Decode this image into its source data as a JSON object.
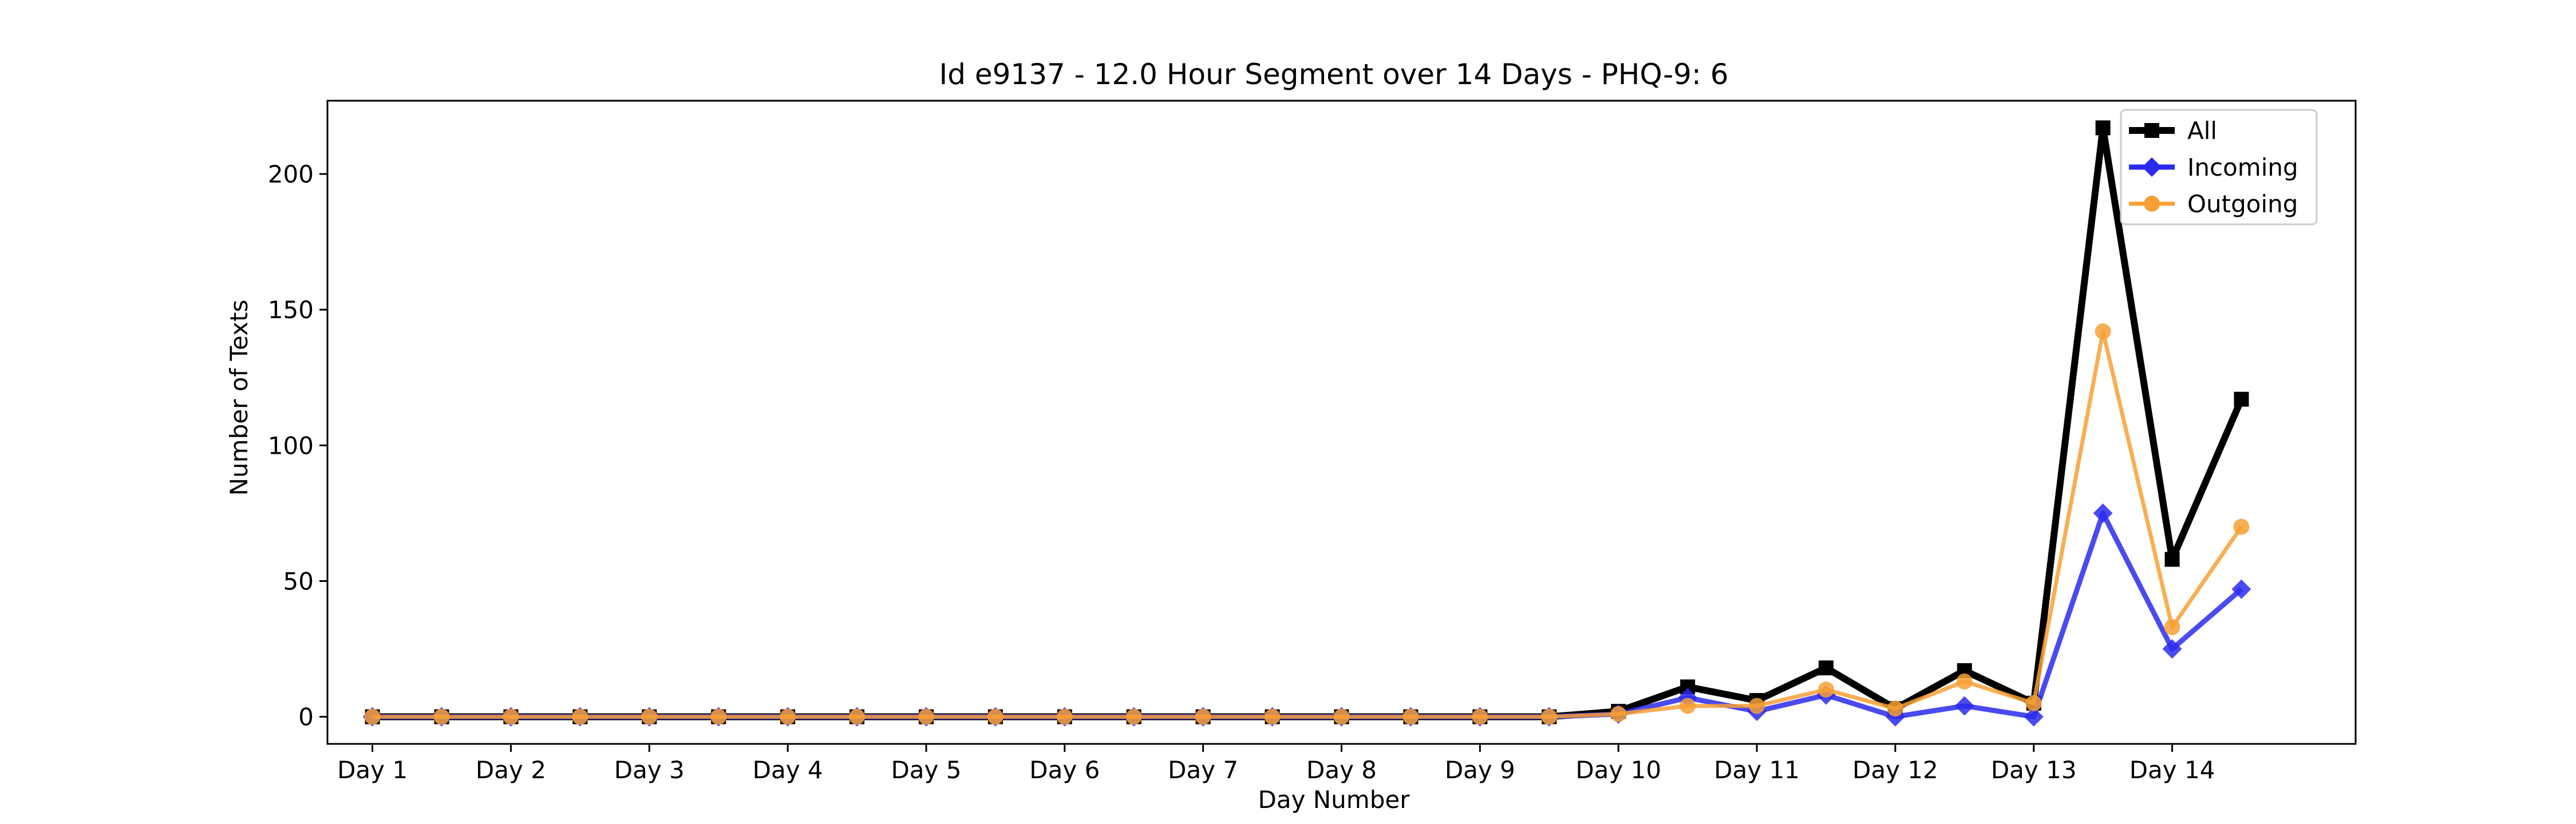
{
  "chart_data": {
    "type": "line",
    "title": "Id e9137 - 12.0 Hour Segment over 14 Days - PHQ-9: 6",
    "xlabel": "Day Number",
    "ylabel": "Number of Texts",
    "x_tick_labels": [
      "Day 1",
      "Day 2",
      "Day 3",
      "Day 4",
      "Day 5",
      "Day 6",
      "Day 7",
      "Day 8",
      "Day 9",
      "Day 10",
      "Day 11",
      "Day 12",
      "Day 13",
      "Day 14"
    ],
    "y_ticks": [
      0,
      50,
      100,
      150,
      200
    ],
    "ylim": [
      -10,
      227
    ],
    "xlim": [
      -0.65,
      28.65
    ],
    "grid": false,
    "legend_position": "top-right",
    "series": [
      {
        "name": "All",
        "color": "#000000",
        "marker": "square",
        "values": [
          0,
          0,
          0,
          0,
          0,
          0,
          0,
          0,
          0,
          0,
          0,
          0,
          0,
          0,
          0,
          0,
          0,
          0,
          2,
          11,
          6,
          18,
          3,
          17,
          5,
          217,
          58,
          117
        ]
      },
      {
        "name": "Incoming",
        "color": "#2a2aee",
        "marker": "diamond",
        "values": [
          0,
          0,
          0,
          0,
          0,
          0,
          0,
          0,
          0,
          0,
          0,
          0,
          0,
          0,
          0,
          0,
          0,
          0,
          1,
          7,
          2,
          8,
          0,
          4,
          0,
          75,
          25,
          47
        ]
      },
      {
        "name": "Outgoing",
        "color": "#f7a035",
        "marker": "circle",
        "values": [
          0,
          0,
          0,
          0,
          0,
          0,
          0,
          0,
          0,
          0,
          0,
          0,
          0,
          0,
          0,
          0,
          0,
          0,
          1,
          4,
          4,
          10,
          3,
          13,
          5,
          142,
          33,
          70
        ]
      }
    ]
  }
}
